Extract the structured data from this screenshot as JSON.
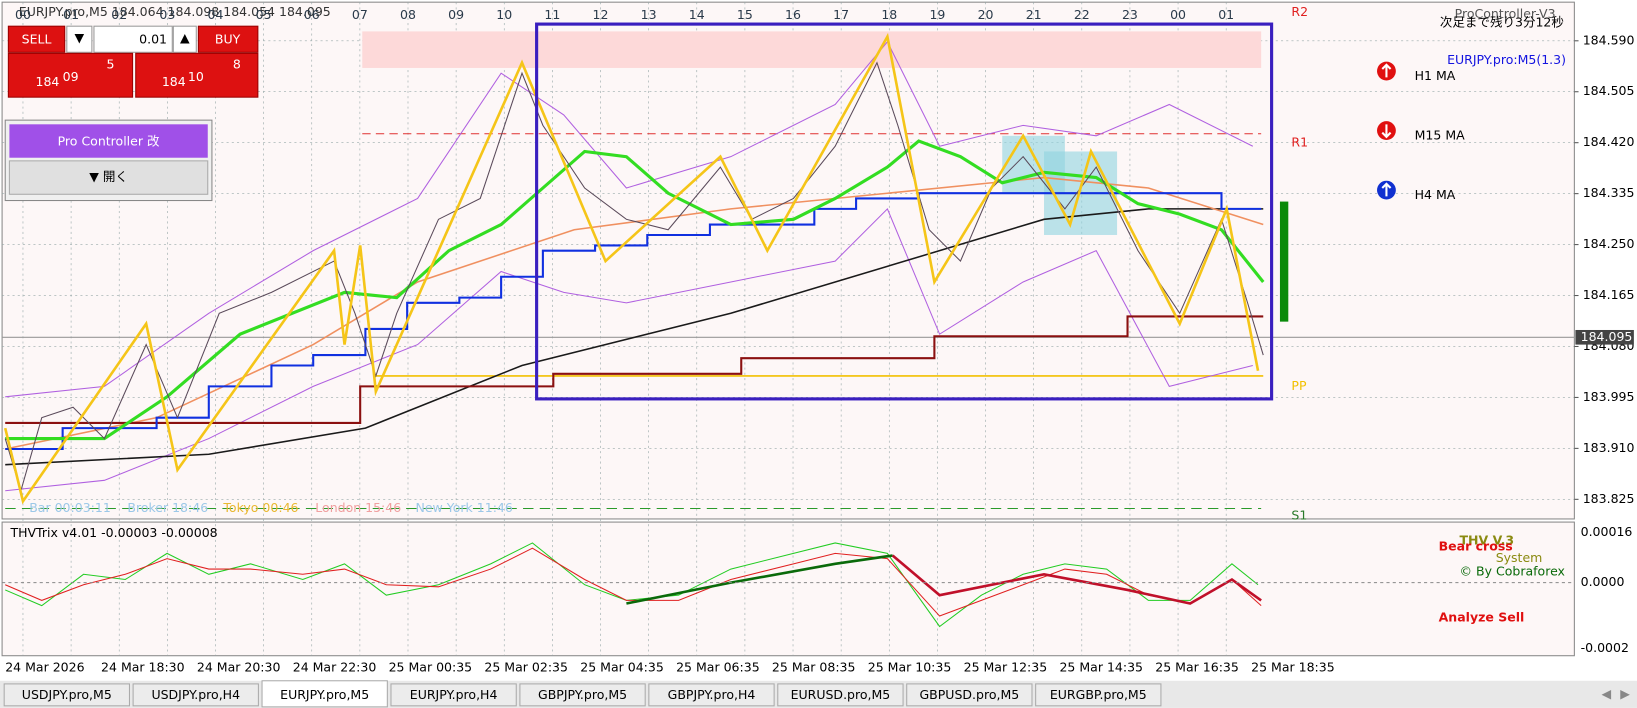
{
  "header": {
    "symbol_info": "EURJPY.pro,M5  184.064 184.098 184.054 184.095",
    "indicator_name": "ProController-V3",
    "countdown": "次足まで残り3分12秒",
    "symbol_label": "EURJPY.pro:M5(1.3)"
  },
  "trade_panel": {
    "sell": "SELL",
    "lot": "0.01",
    "buy": "BUY",
    "bid": {
      "big": "184",
      "main": "09",
      "small": "5"
    },
    "ask": {
      "big": "184",
      "main": "10",
      "small": "8"
    }
  },
  "controller": {
    "title": "Pro Controller 改",
    "open_button": "▼ 開く"
  },
  "ma_legend": [
    "H1 MA",
    "M15 MA",
    "H4 MA"
  ],
  "pivots": [
    "R2",
    "R1",
    "PP",
    "S1"
  ],
  "hour_labels": [
    "00",
    "01",
    "02",
    "03",
    "04",
    "05",
    "06",
    "07",
    "08",
    "09",
    "10",
    "11",
    "12",
    "13",
    "14",
    "15",
    "16",
    "17",
    "18",
    "19",
    "20",
    "21",
    "22",
    "23",
    "00",
    "01"
  ],
  "price_axis": [
    "184.590",
    "184.505",
    "184.420",
    "184.335",
    "184.250",
    "184.165",
    "184.080",
    "183.995",
    "183.910",
    "183.825"
  ],
  "current_price": "184.095",
  "sessions": [
    "Bar 00:03:11",
    "Broker 18:46",
    "Tokyo 00:46",
    "London 15:46",
    "New York 11:46"
  ],
  "oscillator": {
    "title": "THVTrix v4.01 -0.00003 -0.00008",
    "brand": "THV V.3",
    "system": "System",
    "credit": "© By Cobraforex",
    "signal": "Bear cross",
    "analysis": "Analyze Sell",
    "axis": [
      "0.00016",
      "0.0000",
      "-0.0002"
    ]
  },
  "time_axis": [
    "24 Mar 2026",
    "24 Mar 18:30",
    "24 Mar 20:30",
    "24 Mar 22:30",
    "25 Mar 00:35",
    "25 Mar 02:35",
    "25 Mar 04:35",
    "25 Mar 06:35",
    "25 Mar 08:35",
    "25 Mar 10:35",
    "25 Mar 12:35",
    "25 Mar 14:35",
    "25 Mar 16:35",
    "25 Mar 18:35"
  ],
  "tabs": [
    "USDJPY.pro,M5",
    "USDJPY.pro,H4",
    "EURJPY.pro,M5",
    "EURJPY.pro,H4",
    "GBPJPY.pro,M5",
    "GBPJPY.pro,H4",
    "EURUSD.pro,M5",
    "GBPUSD.pro,M5",
    "EURGBP.pro,M5"
  ]
}
